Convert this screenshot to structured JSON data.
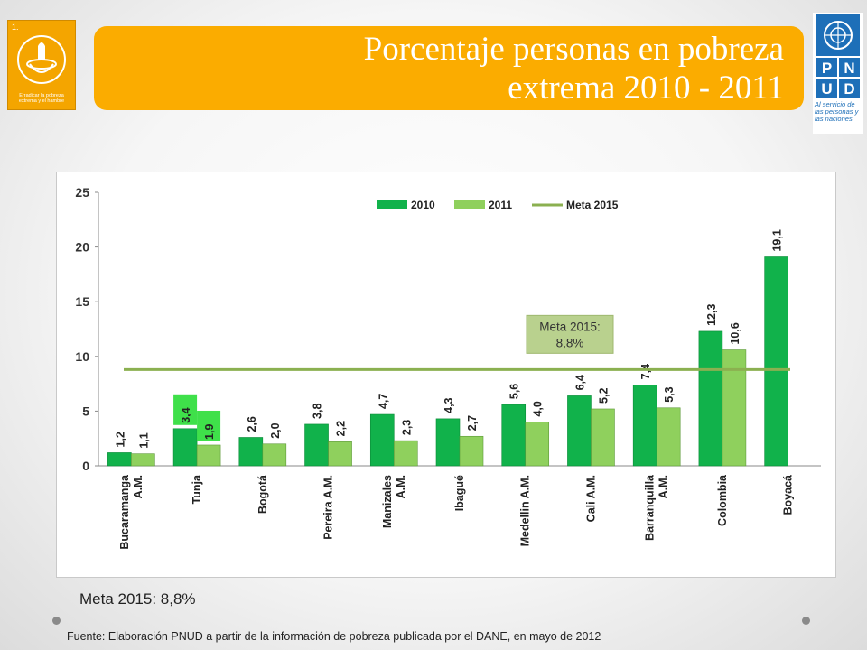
{
  "header": {
    "title_line1": "Porcentaje personas en pobreza",
    "title_line2": "extrema 2010  - 2011",
    "left_logo": {
      "number": "1.",
      "caption": "Erradicar la pobreza extrema y el hambre"
    },
    "pnud_logo": {
      "letters": [
        "P",
        "N",
        "U",
        "D"
      ],
      "tagline": "Al servicio de las personas y las naciones"
    }
  },
  "chart_data": {
    "type": "bar",
    "categories": [
      "Bucaramanga A.M.",
      "Tunja",
      "Bogotá",
      "Pereira A.M.",
      "Manizales A.M.",
      "Ibagué",
      "Medellín A.M.",
      "Cali A.M.",
      "Barranquilla A.M.",
      "Colombia",
      "Boyacá"
    ],
    "category_lines": [
      [
        "Bucaramanga",
        "A.M."
      ],
      [
        "Tunja"
      ],
      [
        "Bogotá"
      ],
      [
        "Pereira A.M."
      ],
      [
        "Manizales",
        "A.M."
      ],
      [
        "Ibagué"
      ],
      [
        "Medellin A.M."
      ],
      [
        "Cali A.M."
      ],
      [
        "Barranquilla",
        "A.M."
      ],
      [
        "Colombia"
      ],
      [
        "Boyacá"
      ]
    ],
    "series": [
      {
        "name": "2010",
        "color": "#11b24b",
        "values": [
          1.2,
          3.4,
          2.6,
          3.8,
          4.7,
          4.3,
          5.6,
          6.4,
          7.4,
          12.3,
          19.1
        ],
        "labels": [
          "1,2",
          "3,4",
          "2,6",
          "3,8",
          "4,7",
          "4,3",
          "5,6",
          "6,4",
          "7,4",
          "12,3",
          "19,1"
        ]
      },
      {
        "name": "2011",
        "color": "#8fd05d",
        "values": [
          1.1,
          1.9,
          2.0,
          2.2,
          2.3,
          2.7,
          4.0,
          5.2,
          5.3,
          10.6,
          null
        ],
        "labels": [
          "1,1",
          "1,9",
          "2,0",
          "2,2",
          "2,3",
          "2,7",
          "4,0",
          "5,2",
          "5,3",
          "10,6",
          ""
        ]
      }
    ],
    "meta": {
      "name": "Meta 2015",
      "value": 8.8,
      "color": "#8bb050",
      "annotation_line1": "Meta 2015:",
      "annotation_line2": "8,8%"
    },
    "highlighted_category": "Tunja",
    "highlight_color": "#3fe04a",
    "ylim": [
      0,
      25
    ],
    "yticks": [
      0,
      5,
      10,
      15,
      20,
      25
    ],
    "legend_position": "top-center",
    "grid": false,
    "xlabel": "",
    "ylabel": ""
  },
  "footer": {
    "meta_note": "Meta 2015: 8,8%",
    "source": "Fuente: Elaboración PNUD a partir de la información de pobreza publicada  por el  DANE, en mayo de 2012"
  }
}
